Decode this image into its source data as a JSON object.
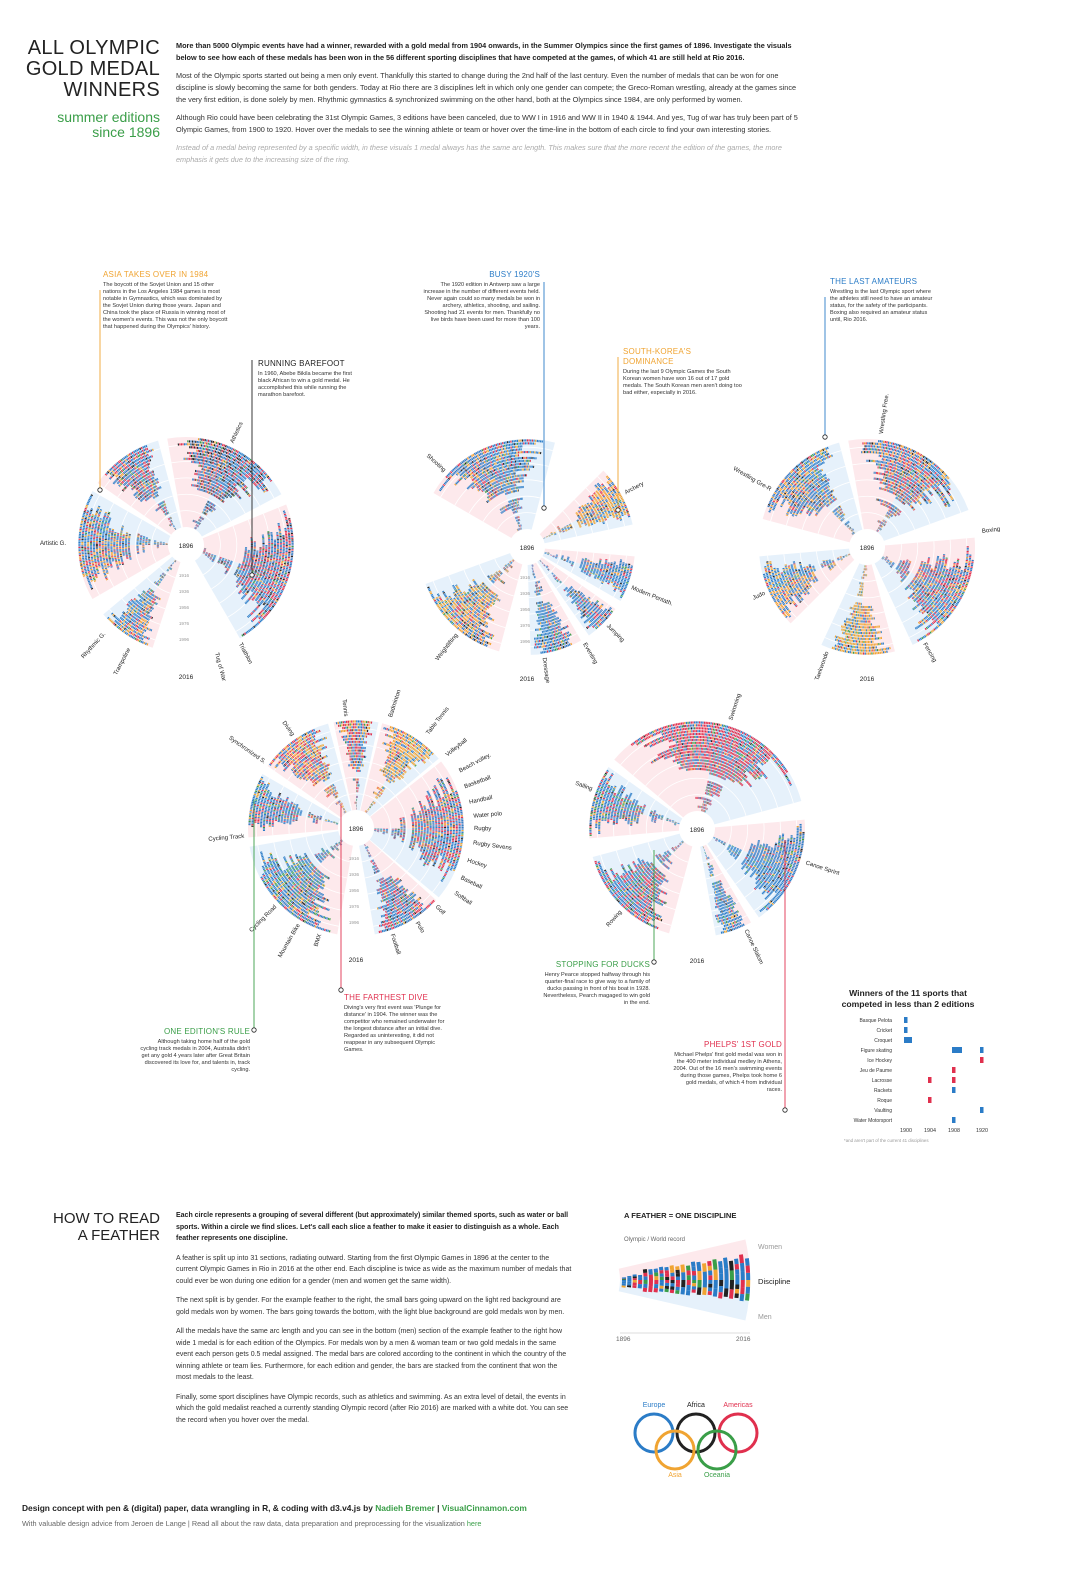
{
  "header": {
    "title_lines": [
      "ALL OLYMPIC",
      "GOLD MEDAL",
      "WINNERS"
    ],
    "subtitle_lines": [
      "summer editions",
      "since 1896"
    ]
  },
  "intro": {
    "lead": "More than 5000 Olympic events have had a winner, rewarded with a gold medal from 1904 onwards, in the Summer Olympics since the first games of 1896. Investigate the visuals below to see how each of these medals has been won in the 56 different sporting disciplines that have competed at the games, of which 41 are still held at Rio 2016.",
    "p2": "Most of the Olympic sports started out being a men only event. Thankfully this started to change during the 2nd half of the last century. Even the number of medals that can be won for one discipline is slowly becoming the same for both genders. Today at Rio there are 3 disciplines left in which only one gender can compete; the Greco-Roman wrestling, already at the games since the very first edition, is done solely by men. Rhythmic gymnastics & synchronized swimming on the other hand, both at the Olympics since 1984, are only performed by women.",
    "p3": "Although Rio could have been celebrating the 31st Olympic Games, 3 editions have been canceled, due to WW I in 1916 and WW II in 1940 & 1944. And yes, Tug of war has truly been part of 5 Olympic Games, from 1900 to 1920. Hover over the medals to see the winning athlete or team or hover over the time-line in the bottom of each circle to find your own interesting stories.",
    "note": "Instead of a medal being represented by a specific width, in these visuals 1 medal always has the same arc length. This makes sure that the more recent the edition of the games, the more emphasis it gets due to the increasing size of the ring."
  },
  "colors": {
    "Europe": "#2b7cc7",
    "Asia": "#f0a432",
    "Africa": "#222222",
    "Oceania": "#3a9e48",
    "Americas": "#e0304e",
    "women_bg": "#fde9ec",
    "men_bg": "#e6f1fb"
  },
  "continents": [
    {
      "name": "Europe",
      "color": "#2b7cc7"
    },
    {
      "name": "Africa",
      "color": "#222222"
    },
    {
      "name": "Americas",
      "color": "#e0304e"
    },
    {
      "name": "Asia",
      "color": "#f0a432"
    },
    {
      "name": "Oceania",
      "color": "#3a9e48"
    }
  ],
  "chart_data": [
    {
      "type": "radial-stacked-bar",
      "title": "Athletics & gymnastics circle",
      "inner_label": "1896",
      "outer_label": "2016",
      "ring_year_labels": [
        "1916",
        "1936",
        "1956",
        "1976",
        "1996"
      ],
      "disciplines": [
        "Athletics",
        "Artistic G.",
        "Rhythmic G.",
        "Trampoline",
        "Triathlon",
        "Tug of War"
      ]
    },
    {
      "type": "radial-stacked-bar",
      "title": "Precision sports circle",
      "inner_label": "1896",
      "outer_label": "2016",
      "ring_year_labels": [
        "1916",
        "1936",
        "1956",
        "1976",
        "1996"
      ],
      "disciplines": [
        "Shooting",
        "Archery",
        "Modern Pentath.",
        "Jumping",
        "Eventing",
        "Dressage",
        "Weightlifting"
      ]
    },
    {
      "type": "radial-stacked-bar",
      "title": "Combat sports circle",
      "inner_label": "1896",
      "outer_label": "2016",
      "disciplines": [
        "Wrestling Free.",
        "Boxing",
        "Fencing",
        "Taekwondo",
        "Judo",
        "Wrestling Gre-R"
      ]
    },
    {
      "type": "radial-stacked-bar",
      "title": "Ball & cycling sports circle",
      "inner_label": "1896",
      "outer_label": "2016",
      "ring_year_labels": [
        "1916",
        "1936",
        "1956",
        "1976",
        "1996"
      ],
      "disciplines": [
        "Tennis",
        "Badminton",
        "Table Tennis",
        "Volleyball",
        "Beach volley.",
        "Basketball",
        "Handball",
        "Water polo",
        "Rugby",
        "Rugby Sevens",
        "Hockey",
        "Baseball",
        "Softball",
        "Golf",
        "Polo",
        "Football",
        "Diving",
        "Synchronized S.",
        "Cycling Track",
        "Cycling Road",
        "Mountain Bike",
        "BMX"
      ]
    },
    {
      "type": "radial-stacked-bar",
      "title": "Water sports circle",
      "inner_label": "1896",
      "outer_label": "2016",
      "disciplines": [
        "Swimming",
        "Sailing",
        "Canoe Sprint",
        "Canoe Slalom",
        "Rowing"
      ]
    },
    {
      "type": "scatter",
      "title": "Winners of the 11 sports that competed in less than 2 editions",
      "footnote": "*and aren't part of the current 41 disciplines",
      "categories": [
        "Basque Pelota",
        "Cricket",
        "Croquet",
        "Figure skating",
        "Ice Hockey",
        "Jeu de Paume",
        "Lacrosse",
        "Rackets",
        "Roque",
        "Vaulting",
        "Water Motorsport"
      ],
      "x_ticks": [
        1900,
        1904,
        1908,
        1920
      ],
      "points": [
        {
          "sport": "Basque Pelota",
          "year": 1900,
          "continent": "Europe"
        },
        {
          "sport": "Cricket",
          "year": 1900,
          "continent": "Europe"
        },
        {
          "sport": "Croquet",
          "year": 1900,
          "continent": "Europe"
        },
        {
          "sport": "Figure skating",
          "year": 1908,
          "continent": "Europe"
        },
        {
          "sport": "Figure skating",
          "year": 1920,
          "continent": "Europe"
        },
        {
          "sport": "Ice Hockey",
          "year": 1920,
          "continent": "Americas"
        },
        {
          "sport": "Jeu de Paume",
          "year": 1908,
          "continent": "Americas"
        },
        {
          "sport": "Lacrosse",
          "year": 1904,
          "continent": "Americas"
        },
        {
          "sport": "Lacrosse",
          "year": 1908,
          "continent": "Americas"
        },
        {
          "sport": "Rackets",
          "year": 1908,
          "continent": "Europe"
        },
        {
          "sport": "Roque",
          "year": 1904,
          "continent": "Americas"
        },
        {
          "sport": "Vaulting",
          "year": 1920,
          "continent": "Europe"
        },
        {
          "sport": "Water Motorsport",
          "year": 1908,
          "continent": "Europe"
        }
      ]
    }
  ],
  "annotations": {
    "asia": {
      "title": "ASIA TAKES OVER IN 1984",
      "text": "The boycott of the Sovjet Union and 15 other nations in the Los Angeles 1984 games is most notable in Gymnastics, which was dominated by the Sovjet Union during those years. Japan and China took the place of Russia in winning most of the women's events. This was not the only boycott that happened during the Olympics' history."
    },
    "barefoot": {
      "title": "RUNNING BAREFOOT",
      "text": "In 1960, Abebe Bikila became the first black African to win a gold medal. He accomplished this while running the marathon barefoot."
    },
    "busy": {
      "title": "BUSY 1920'S",
      "text": "The 1920 edition in Antwerp saw a large increase in the number of different events held. Never again could so many medals be won in archery, athletics, shooting, and sailing. Shooting had 21 events for men. Thankfully no live birds have been used for more than 100 years."
    },
    "korea": {
      "title": "SOUTH-KOREA'S DOMINANCE",
      "text": "During the last 9 Olympic Games the South Korean women have won 16 out of 17 gold medals. The South Korean men aren't doing too bad either, especially in 2016."
    },
    "amateurs": {
      "title": "THE LAST AMATEURS",
      "text": "Wrestling is the last Olympic sport where the athletes still need to have an amateur status, for the safety of the participants. Boxing also required an amateur status until, Rio 2016."
    },
    "edition": {
      "title": "ONE EDITION'S RULE",
      "text": "Although taking home half of the gold cycling track medals in 2004, Australia didn't get any gold 4 years later after Great Britain discovered its love for, and talents in, track cycling."
    },
    "dive": {
      "title": "THE FARTHEST DIVE",
      "text": "Diving's very first event was 'Plunge for distance' in 1904. The winner was the competitor who remained underwater for the longest distance after an initial dive. Regarded as uninteresting, it did not reappear in any subsequent Olympic Games."
    },
    "ducks": {
      "title": "STOPPING FOR DUCKS",
      "text": "Henry Pearce stopped halfway through his quarter-final race to give way to a family of ducks passing in front of his boat in 1928. Nevertheless, Pearch magaged to win gold in the end."
    },
    "phelps": {
      "title": "PHELPS' 1ST GOLD",
      "text": "Michael Phelps' first gold medal was won in the 400 meter individual medley in Athens, 2004. Out of the 16 men's swimming events during those games, Phelps took home 6 gold medals, of which 4 from individual races."
    }
  },
  "small_chart": {
    "title_lines": [
      "Winners of the 11 sports that",
      "competed in less than 2 editions"
    ],
    "footnote": "*and aren't part of the current 41 disciplines"
  },
  "howto": {
    "title_lines": [
      "HOW TO READ",
      "A FEATHER"
    ],
    "lead": "Each circle represents a grouping of several different (but approximately) similar themed sports, such as water or ball sports. Within a circle we find slices. Let's call each slice a feather to make it easier to distinguish as a whole. Each feather represents one discipline.",
    "p2": "A feather is split up into 31 sections, radiating outward. Starting from the first Olympic Games in 1896 at the center to the current Olympic Games in Rio in 2016 at the other end. Each discipline is twice as wide as the maximum number of medals that could ever be won during one edition for a gender (men and women get the same width).",
    "p3": "The next split is by gender. For the example feather to the right, the small bars going upward on the light red background are gold medals won by women. The bars going towards the bottom, with the light blue background are gold medals won by men.",
    "p4": "All the medals have the same arc length and you can see in the bottom (men) section of the example feather to the right how wide 1 medal is for each edition of the Olympics. For medals won by a men & woman team or two gold medals in the same event each person gets 0.5 medal assigned. The medal bars are colored according to the continent in which the country of the winning athlete or team lies. Furthermore, for each edition and gender, the bars are stacked from the continent that won the most medals to the least.",
    "p5": "Finally, some sport disciplines have Olympic records, such as athletics and swimming. As an extra level of detail, the events in which the gold medalist reached a currently standing Olympic record (after Rio 2016) are marked with a white dot. You can see the record when you hover over the medal.",
    "feather_title": "A FEATHER = ONE DISCIPLINE",
    "feather_record": "Olympic / World record",
    "feather_women": "Women",
    "feather_discipline": "Discipline",
    "feather_men": "Men",
    "feather_start": "1896",
    "feather_end": "2016"
  },
  "footer": {
    "line1_a": "Design concept with pen & (digital) paper, data wrangling in R, & coding with d3.v4.js by ",
    "line1_name": "Nadieh Bremer",
    "line1_sep": "  |  ",
    "line1_site": "VisualCinnamon.com",
    "line2_a": "With valuable design advice from Jeroen de Lange   |   Read all about the raw data, data preparation and preprocessing for the visualization ",
    "line2_link": "here"
  }
}
